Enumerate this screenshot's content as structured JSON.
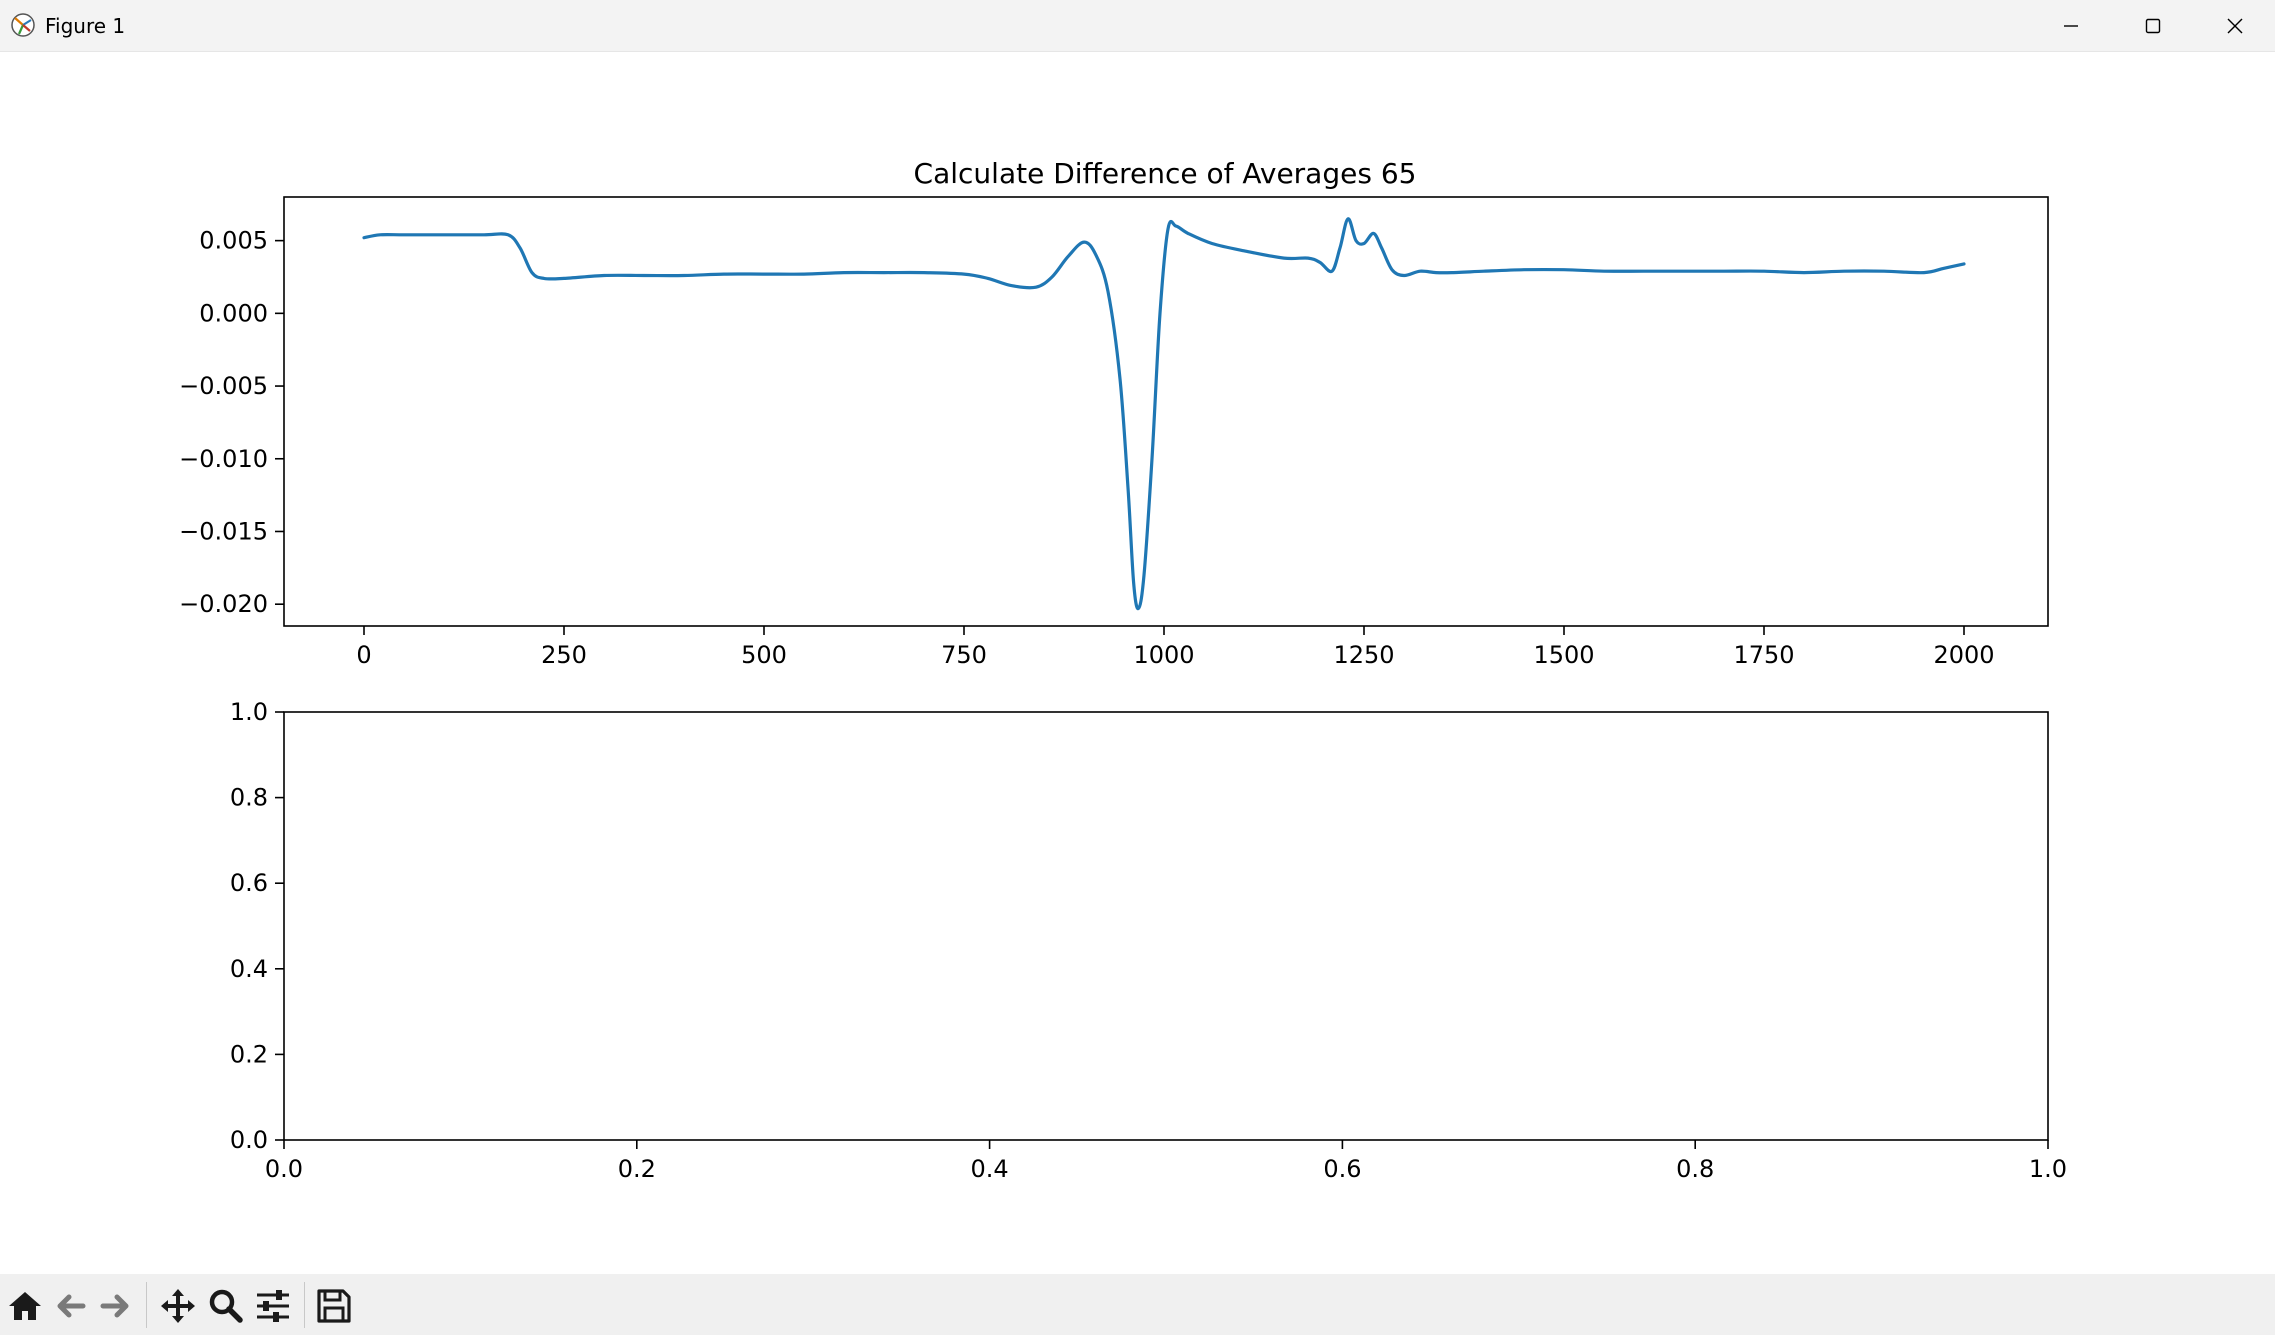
{
  "window": {
    "title": "Figure 1",
    "minimize_icon": "minimize-icon",
    "maximize_icon": "maximize-icon",
    "close_icon": "close-icon"
  },
  "toolbar": {
    "tools": [
      "home-icon",
      "back-arrow-icon",
      "forward-arrow-icon",
      "pan-icon",
      "zoom-icon",
      "configure-subplots-icon",
      "save-icon"
    ]
  },
  "chart_data": [
    {
      "type": "line",
      "title": "Calculate Difference of Averages 65",
      "xlabel": "",
      "ylabel": "",
      "xlim": [
        -100,
        2105
      ],
      "ylim": [
        -0.0215,
        0.008
      ],
      "xticks": [
        0,
        250,
        500,
        750,
        1000,
        1250,
        1500,
        1750,
        2000
      ],
      "xtick_labels": [
        "0",
        "250",
        "500",
        "750",
        "1000",
        "1250",
        "1500",
        "1750",
        "2000"
      ],
      "yticks": [
        0.005,
        0.0,
        -0.005,
        -0.01,
        -0.015,
        -0.02
      ],
      "ytick_labels": [
        "0.005",
        "0.000",
        "−0.005",
        "−0.010",
        "−0.015",
        "−0.020"
      ],
      "grid": false,
      "line_color": "#1f77b4",
      "series": [
        {
          "x": [
            0,
            20,
            50,
            100,
            150,
            180,
            195,
            210,
            225,
            250,
            300,
            350,
            400,
            450,
            500,
            550,
            600,
            650,
            700,
            750,
            780,
            810,
            840,
            860,
            880,
            900,
            915,
            930,
            945,
            955,
            962,
            968,
            975,
            985,
            995,
            1005,
            1015,
            1030,
            1060,
            1100,
            1150,
            1180,
            1195,
            1210,
            1220,
            1230,
            1240,
            1250,
            1262,
            1272,
            1285,
            1300,
            1320,
            1340,
            1360,
            1400,
            1450,
            1500,
            1550,
            1600,
            1650,
            1700,
            1750,
            1800,
            1850,
            1900,
            1950,
            1975,
            2000
          ],
          "y": [
            0.0052,
            0.0054,
            0.0054,
            0.0054,
            0.0054,
            0.0054,
            0.0045,
            0.0028,
            0.0024,
            0.0024,
            0.0026,
            0.0026,
            0.0026,
            0.0027,
            0.0027,
            0.0027,
            0.0028,
            0.0028,
            0.0028,
            0.0027,
            0.0024,
            0.0019,
            0.0018,
            0.0025,
            0.0039,
            0.0049,
            0.004,
            0.0015,
            -0.0045,
            -0.012,
            -0.0185,
            -0.0203,
            -0.018,
            -0.01,
            0.0,
            0.0058,
            0.006,
            0.0055,
            0.0048,
            0.0043,
            0.0038,
            0.0038,
            0.0035,
            0.0029,
            0.0045,
            0.0065,
            0.005,
            0.0048,
            0.0055,
            0.0045,
            0.003,
            0.0026,
            0.0029,
            0.0028,
            0.0028,
            0.0029,
            0.003,
            0.003,
            0.0029,
            0.0029,
            0.0029,
            0.0029,
            0.0029,
            0.0028,
            0.0029,
            0.0029,
            0.0028,
            0.0031,
            0.0034
          ]
        }
      ]
    },
    {
      "type": "line",
      "title": "",
      "xlim": [
        0,
        1
      ],
      "ylim": [
        0,
        1
      ],
      "xticks": [
        0.0,
        0.2,
        0.4,
        0.6,
        0.8,
        1.0
      ],
      "xtick_labels": [
        "0.0",
        "0.2",
        "0.4",
        "0.6",
        "0.8",
        "1.0"
      ],
      "yticks": [
        1.0,
        0.8,
        0.6,
        0.4,
        0.2,
        0.0
      ],
      "ytick_labels": [
        "1.0",
        "0.8",
        "0.6",
        "0.4",
        "0.2",
        "0.0"
      ],
      "grid": false,
      "series": []
    }
  ]
}
